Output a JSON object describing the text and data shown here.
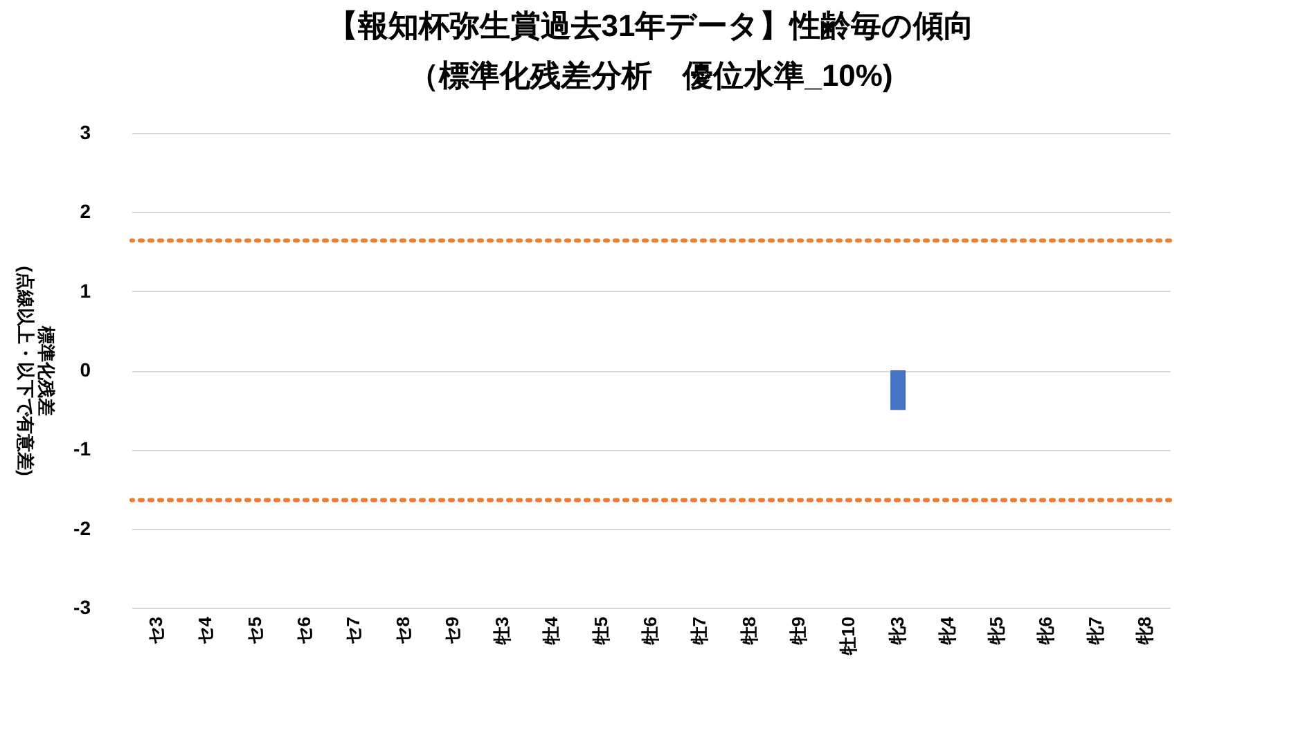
{
  "chart_data": {
    "type": "bar",
    "title": "【報知杯弥生賞過去31年データ】性齢毎の傾向",
    "subtitle": "（標準化残差分析　優位水準_10%)",
    "ylabel": "標準化残差\n(点線以上・以下で有意差)",
    "categories": [
      "セ3",
      "セ4",
      "セ5",
      "セ6",
      "セ7",
      "セ8",
      "セ9",
      "牡3",
      "牡4",
      "牡5",
      "牡6",
      "牡7",
      "牡8",
      "牡9",
      "牡10",
      "牝3",
      "牝4",
      "牝5",
      "牝6",
      "牝7",
      "牝8"
    ],
    "values": [
      0,
      0,
      0,
      0,
      0,
      0,
      0,
      0,
      0,
      0,
      0,
      0,
      0,
      0,
      0,
      -0.5,
      0,
      0,
      0,
      0,
      0
    ],
    "color": "#4472c4",
    "ylim": [
      -3,
      3
    ],
    "yticks": [
      -3,
      -2,
      -1,
      0,
      1,
      2,
      3
    ],
    "grid": "y",
    "ref_lines": [
      {
        "axis": "y",
        "value": 1.64,
        "label": null,
        "color": "#ed7d31",
        "line_style": "dotted"
      },
      {
        "axis": "y",
        "value": -1.64,
        "label": null,
        "color": "#ed7d31",
        "line_style": "dotted"
      }
    ]
  }
}
